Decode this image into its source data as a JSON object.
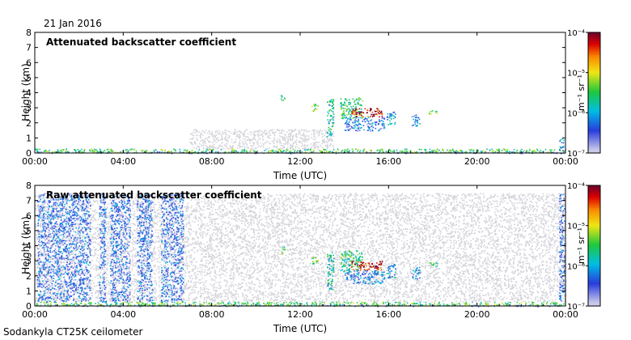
{
  "header": {
    "date": "21 Jan 2016",
    "footer": "Sodankyla CT25K ceilometer"
  },
  "chart_data": [
    {
      "type": "heatmap",
      "title": "Attenuated backscatter coefficient",
      "xlabel": "Time (UTC)",
      "ylabel": "Height (km)",
      "xlim": [
        0,
        24
      ],
      "ylim": [
        0,
        8
      ],
      "x_ticks": [
        "00:00",
        "04:00",
        "08:00",
        "12:00",
        "16:00",
        "20:00",
        "00:00"
      ],
      "y_ticks": [
        "0",
        "1",
        "2",
        "3",
        "4",
        "5",
        "6",
        "7",
        "8"
      ],
      "colorbar": {
        "label": "m⁻¹ sr⁻¹",
        "scale": "log",
        "ticks": [
          "10⁻⁷",
          "10⁻⁶",
          "10⁻⁵",
          "10⁻⁴"
        ],
        "range": [
          1e-07,
          0.0001
        ]
      },
      "regions": [
        {
          "t0": 0.0,
          "t1": 24.0,
          "h0": 0.0,
          "h1": 0.12,
          "level": 0.15
        },
        {
          "t0": 0.0,
          "t1": 24.0,
          "h0": 0.05,
          "h1": 0.3,
          "level": 0.55
        },
        {
          "t0": 7.0,
          "t1": 13.5,
          "h0": 0.3,
          "h1": 1.6,
          "level": 0.02
        },
        {
          "t0": 11.1,
          "t1": 11.3,
          "h0": 3.5,
          "h1": 4.0,
          "level": 0.55
        },
        {
          "t0": 12.5,
          "t1": 12.8,
          "h0": 2.8,
          "h1": 3.3,
          "level": 0.6
        },
        {
          "t0": 13.2,
          "t1": 13.5,
          "h0": 1.0,
          "h1": 3.6,
          "level": 0.45
        },
        {
          "t0": 13.8,
          "t1": 14.8,
          "h0": 2.3,
          "h1": 3.7,
          "level": 0.5
        },
        {
          "t0": 14.3,
          "t1": 15.7,
          "h0": 2.4,
          "h1": 3.0,
          "level": 0.95
        },
        {
          "t0": 14.0,
          "t1": 15.8,
          "h0": 1.5,
          "h1": 2.4,
          "level": 0.3
        },
        {
          "t0": 15.9,
          "t1": 16.3,
          "h0": 1.9,
          "h1": 2.8,
          "level": 0.35
        },
        {
          "t0": 17.0,
          "t1": 17.4,
          "h0": 1.8,
          "h1": 2.6,
          "level": 0.3
        },
        {
          "t0": 17.8,
          "t1": 18.2,
          "h0": 2.6,
          "h1": 2.9,
          "level": 0.55
        },
        {
          "t0": 23.7,
          "t1": 23.9,
          "h0": 0.2,
          "h1": 1.0,
          "level": 0.35
        }
      ]
    },
    {
      "type": "heatmap",
      "title": "Raw attenuated backscatter coefficient",
      "xlabel": "Time (UTC)",
      "ylabel": "Height (km)",
      "xlim": [
        0,
        24
      ],
      "ylim": [
        0,
        8
      ],
      "x_ticks": [
        "00:00",
        "04:00",
        "08:00",
        "12:00",
        "16:00",
        "20:00",
        "00:00"
      ],
      "y_ticks": [
        "0",
        "1",
        "2",
        "3",
        "4",
        "5",
        "6",
        "7",
        "8"
      ],
      "colorbar": {
        "label": "m⁻¹ sr⁻¹",
        "scale": "log",
        "ticks": [
          "10⁻⁷",
          "10⁻⁶",
          "10⁻⁵",
          "10⁻⁴"
        ],
        "range": [
          1e-07,
          0.0001
        ]
      },
      "regions": [
        {
          "t0": 0.0,
          "t1": 24.0,
          "h0": 0.0,
          "h1": 0.12,
          "level": 0.15
        },
        {
          "t0": 0.0,
          "t1": 24.0,
          "h0": 0.05,
          "h1": 0.3,
          "level": 0.55
        },
        {
          "t0": 0.0,
          "t1": 24.0,
          "h0": 0.3,
          "h1": 7.5,
          "level": 0.02
        },
        {
          "t0": 0.1,
          "t1": 2.5,
          "h0": 0.3,
          "h1": 7.5,
          "level": 0.25
        },
        {
          "t0": 2.9,
          "t1": 3.2,
          "h0": 0.3,
          "h1": 7.5,
          "level": 0.25
        },
        {
          "t0": 3.4,
          "t1": 4.3,
          "h0": 0.3,
          "h1": 7.5,
          "level": 0.25
        },
        {
          "t0": 4.6,
          "t1": 5.3,
          "h0": 0.3,
          "h1": 7.5,
          "level": 0.25
        },
        {
          "t0": 5.7,
          "t1": 6.7,
          "h0": 0.3,
          "h1": 7.5,
          "level": 0.25
        },
        {
          "t0": 11.1,
          "t1": 11.3,
          "h0": 3.5,
          "h1": 4.0,
          "level": 0.55
        },
        {
          "t0": 12.5,
          "t1": 12.8,
          "h0": 2.8,
          "h1": 3.3,
          "level": 0.6
        },
        {
          "t0": 13.2,
          "t1": 13.5,
          "h0": 1.0,
          "h1": 3.6,
          "level": 0.45
        },
        {
          "t0": 13.8,
          "t1": 14.8,
          "h0": 2.3,
          "h1": 3.7,
          "level": 0.5
        },
        {
          "t0": 14.3,
          "t1": 15.7,
          "h0": 2.4,
          "h1": 3.0,
          "level": 0.95
        },
        {
          "t0": 14.0,
          "t1": 15.8,
          "h0": 1.5,
          "h1": 2.4,
          "level": 0.3
        },
        {
          "t0": 15.9,
          "t1": 16.3,
          "h0": 1.9,
          "h1": 2.8,
          "level": 0.35
        },
        {
          "t0": 17.0,
          "t1": 17.4,
          "h0": 1.8,
          "h1": 2.6,
          "level": 0.3
        },
        {
          "t0": 17.8,
          "t1": 18.2,
          "h0": 2.6,
          "h1": 2.9,
          "level": 0.55
        },
        {
          "t0": 23.7,
          "t1": 23.95,
          "h0": 0.3,
          "h1": 7.5,
          "level": 0.25
        }
      ]
    }
  ]
}
